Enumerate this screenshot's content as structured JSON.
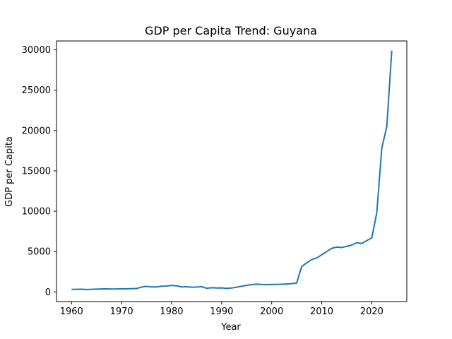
{
  "chart_data": {
    "type": "line",
    "title": "GDP per Capita Trend: Guyana",
    "xlabel": "Year",
    "ylabel": "GDP per Capita",
    "xlim": [
      1957,
      2027
    ],
    "ylim": [
      -1200,
      31100
    ],
    "x_ticks": [
      1960,
      1970,
      1980,
      1990,
      2000,
      2010,
      2020
    ],
    "y_ticks": [
      0,
      5000,
      10000,
      15000,
      20000,
      25000,
      30000
    ],
    "grid": false,
    "series": [
      {
        "color": "#1f77b4",
        "x": [
          1960,
          1961,
          1962,
          1963,
          1964,
          1965,
          1966,
          1967,
          1968,
          1969,
          1970,
          1971,
          1972,
          1973,
          1974,
          1975,
          1976,
          1977,
          1978,
          1979,
          1980,
          1981,
          1982,
          1983,
          1984,
          1985,
          1986,
          1987,
          1988,
          1989,
          1990,
          1991,
          1992,
          1993,
          1994,
          1995,
          1996,
          1997,
          1998,
          1999,
          2000,
          2001,
          2002,
          2003,
          2004,
          2005,
          2006,
          2007,
          2008,
          2009,
          2010,
          2011,
          2012,
          2013,
          2014,
          2015,
          2016,
          2017,
          2018,
          2019,
          2020,
          2021,
          2022,
          2023,
          2024
        ],
        "y": [
          300,
          320,
          330,
          300,
          320,
          340,
          360,
          370,
          350,
          360,
          380,
          390,
          400,
          420,
          600,
          680,
          620,
          620,
          700,
          720,
          800,
          750,
          620,
          640,
          580,
          600,
          650,
          450,
          520,
          480,
          500,
          430,
          480,
          580,
          700,
          800,
          900,
          960,
          920,
          900,
          920,
          920,
          950,
          980,
          1020,
          1100,
          3150,
          3600,
          4000,
          4200,
          4600,
          5000,
          5400,
          5550,
          5500,
          5650,
          5800,
          6100,
          6000,
          6350,
          6700,
          9800,
          17800,
          20500,
          29900
        ]
      }
    ]
  }
}
